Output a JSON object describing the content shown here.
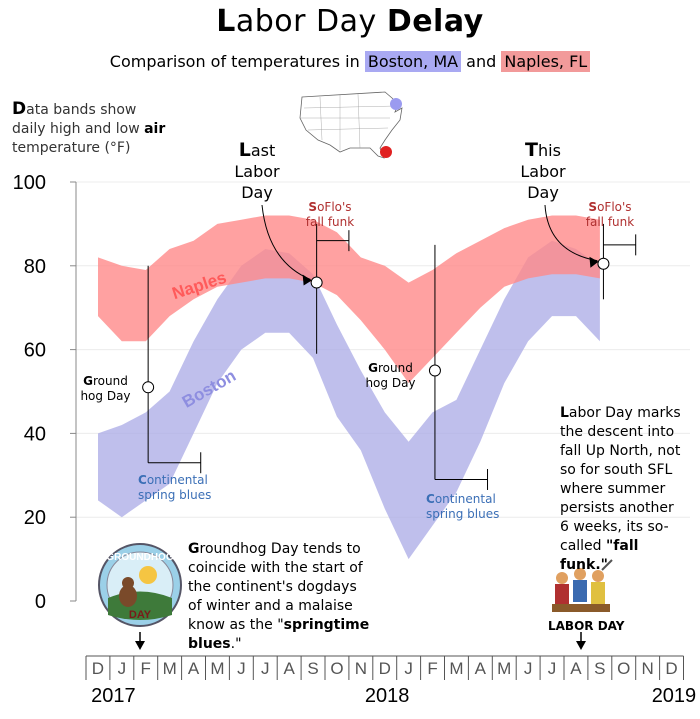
{
  "header": {
    "title_first_letter": "L",
    "title_rest": "abor Day ",
    "title_bold": "Delay",
    "subtitle_prefix": "Comparison of temperatures in ",
    "subtitle_boston": "Boston, MA",
    "subtitle_and": " and ",
    "subtitle_naples": "Naples, FL"
  },
  "axis_note": {
    "first_letter": "D",
    "line1_rest": "ata bands show",
    "line2_prefix": "daily high and low ",
    "line2_bold": "air",
    "line3": "temperature (°F)"
  },
  "annotations": {
    "last_labor_day": {
      "first": "L",
      "rest1": "ast",
      "line2": "Labor",
      "line3": "Day"
    },
    "this_labor_day": {
      "first": "T",
      "rest1": "his",
      "line2": "Labor",
      "line3": "Day"
    },
    "fall_funk": {
      "first": "S",
      "rest1": "oFlo's",
      "line2": "fall funk"
    },
    "groundhog": {
      "first": "G",
      "rest1": "round",
      "line2": "hog Day"
    },
    "spring_blues": {
      "first": "C",
      "rest1": "ontinental",
      "line2": "spring blues"
    },
    "series_label_naples": "Naples",
    "series_label_boston": "Boston"
  },
  "groundhog_text": {
    "first": "G",
    "line1_rest": "roundhog Day tends to",
    "line2": "coincide with the start of",
    "line3": "the continent's dogdays",
    "line4": "of winter and a malaise",
    "line5_prefix": "know as the \"",
    "line5_bold": "springtime",
    "line6_bold": "blues",
    "line6_suffix": ".\"",
    "badge_top": "GROUNDHOG",
    "badge_bottom": "DAY"
  },
  "labor_text": {
    "first": "L",
    "line1_rest": "abor Day marks",
    "line2": "the descent into",
    "line3": "fall Up North, not",
    "line4": "so for south SFL",
    "line5": "where summer",
    "line6": "persists another",
    "line7": "6 weeks, its so-",
    "line8_prefix": "called ",
    "line8_bold": "\"fall funk.\"",
    "caption": "LABOR DAY"
  },
  "colors": {
    "naples": "#ff8a8a",
    "boston": "#aaaae6",
    "blues_text": "#3b6fb6",
    "funk_text": "#b03030"
  },
  "chart_data": {
    "type": "area",
    "title": "Labor Day Delay",
    "ylabel": "Data bands show daily high and low air temperature (°F)",
    "ylim": [
      0,
      100
    ],
    "yticks": [
      0,
      20,
      40,
      60,
      80,
      100
    ],
    "x_months": [
      "D",
      "J",
      "F",
      "M",
      "A",
      "M",
      "J",
      "J",
      "A",
      "S",
      "O",
      "N",
      "D",
      "J",
      "F",
      "M",
      "A",
      "M",
      "J",
      "J",
      "A",
      "S",
      "O",
      "N",
      "D"
    ],
    "x_years": [
      "2017",
      "2018",
      "2019"
    ],
    "month_index_note": "0 = Dec 2016 ... 24 = Dec 2018",
    "series": [
      {
        "name": "Naples, FL",
        "x_month": [
          0,
          1,
          2,
          3,
          4,
          5,
          6,
          7,
          8,
          9,
          10,
          11,
          12,
          13,
          14,
          15,
          16,
          17,
          18,
          19,
          20,
          21
        ],
        "high": [
          82,
          80,
          79,
          84,
          86,
          90,
          91,
          92,
          92,
          91,
          88,
          82,
          80,
          76,
          79,
          83,
          86,
          89,
          91,
          92,
          92,
          91
        ],
        "low": [
          68,
          62,
          62,
          68,
          72,
          75,
          76,
          77,
          77,
          76,
          73,
          67,
          60,
          52,
          58,
          64,
          70,
          75,
          77,
          78,
          78,
          77
        ]
      },
      {
        "name": "Boston, MA",
        "x_month": [
          0,
          1,
          2,
          3,
          4,
          5,
          6,
          7,
          8,
          9,
          10,
          11,
          12,
          13,
          14,
          15,
          16,
          17,
          18,
          19,
          20,
          21
        ],
        "high": [
          40,
          42,
          45,
          50,
          62,
          72,
          80,
          84,
          83,
          78,
          66,
          55,
          45,
          38,
          45,
          48,
          60,
          72,
          82,
          86,
          84,
          80
        ],
        "low": [
          24,
          20,
          24,
          28,
          40,
          52,
          60,
          64,
          64,
          58,
          44,
          36,
          22,
          10,
          18,
          26,
          38,
          52,
          62,
          68,
          68,
          62
        ]
      }
    ],
    "events": [
      {
        "label": "Groundhog Day",
        "month": 2.1,
        "temp": 51
      },
      {
        "label": "Last Labor Day",
        "month": 9.15,
        "temp": 76
      },
      {
        "label": "Groundhog Day",
        "month": 14.1,
        "temp": 55
      },
      {
        "label": "This Labor Day",
        "month": 21.15,
        "temp": 80.5
      }
    ]
  }
}
